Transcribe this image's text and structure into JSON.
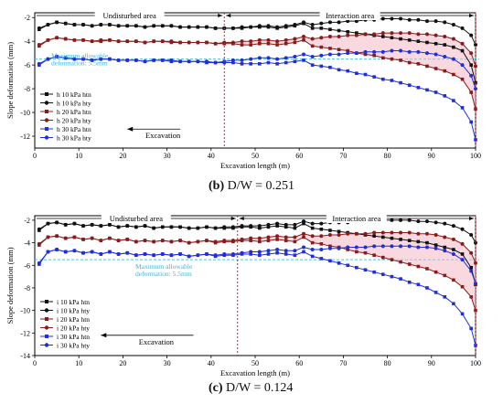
{
  "chart_data": [
    {
      "type": "line",
      "caption_letter": "(b)",
      "caption_text": "D/W = 0.251",
      "xlabel": "Excavation length (m)",
      "ylabel": "Slope deformation  (mm)",
      "xlim": [
        0,
        100
      ],
      "ylim": [
        -13,
        -1.6
      ],
      "xticks": [
        0,
        10,
        20,
        30,
        40,
        50,
        60,
        70,
        80,
        90,
        100
      ],
      "yticks": [
        -2,
        -4,
        -6,
        -8,
        -10,
        -12
      ],
      "region_labels": [
        "Undisturbed area",
        "Interaction area"
      ],
      "divider_x": 43,
      "end_x": 100,
      "allowable_label": "Maximum allowable deformation: 5.5mm",
      "allowable_y": -5.5,
      "excavation_label": "Excavation",
      "legend_position": "left",
      "x": [
        1,
        3,
        5,
        7,
        9,
        11,
        13,
        15,
        17,
        19,
        21,
        23,
        25,
        27,
        29,
        31,
        33,
        35,
        37,
        39,
        41,
        43,
        45,
        47,
        49,
        51,
        53,
        55,
        57,
        59,
        61,
        63,
        65,
        67,
        69,
        71,
        73,
        75,
        77,
        79,
        81,
        83,
        85,
        87,
        89,
        91,
        93,
        95,
        97,
        99,
        100
      ],
      "series": [
        {
          "name": "h 10 kPa htn",
          "color": "#111111",
          "marker": "square",
          "values": [
            -3.0,
            -2.6,
            -2.4,
            -2.5,
            -2.6,
            -2.6,
            -2.7,
            -2.6,
            -2.6,
            -2.7,
            -2.7,
            -2.7,
            -2.8,
            -2.7,
            -2.7,
            -2.7,
            -2.8,
            -2.8,
            -2.8,
            -2.8,
            -2.9,
            -2.9,
            -2.9,
            -2.9,
            -2.8,
            -2.8,
            -2.8,
            -2.9,
            -2.8,
            -2.7,
            -2.5,
            -2.9,
            -2.9,
            -3.0,
            -3.1,
            -3.2,
            -3.3,
            -3.4,
            -3.5,
            -3.6,
            -3.7,
            -3.8,
            -3.9,
            -4.0,
            -4.1,
            -4.2,
            -4.3,
            -4.5,
            -4.8,
            -6.0,
            -7.5
          ]
        },
        {
          "name": "h 10 kPa hty",
          "color": "#111111",
          "marker": "circle",
          "values": [
            -2.9,
            -2.6,
            -2.4,
            -2.5,
            -2.6,
            -2.6,
            -2.7,
            -2.6,
            -2.6,
            -2.7,
            -2.7,
            -2.7,
            -2.8,
            -2.7,
            -2.7,
            -2.7,
            -2.8,
            -2.8,
            -2.8,
            -2.8,
            -2.9,
            -2.9,
            -2.9,
            -2.8,
            -2.8,
            -2.7,
            -2.7,
            -2.8,
            -2.7,
            -2.6,
            -2.4,
            -2.6,
            -2.5,
            -2.4,
            -2.4,
            -2.3,
            -2.3,
            -2.2,
            -2.2,
            -2.1,
            -2.1,
            -2.1,
            -2.2,
            -2.2,
            -2.3,
            -2.3,
            -2.4,
            -2.6,
            -2.9,
            -3.5,
            -4.3
          ]
        },
        {
          "name": "h 20 kPa htn",
          "color": "#8b1a1a",
          "marker": "square",
          "values": [
            -4.4,
            -3.9,
            -3.7,
            -3.8,
            -3.9,
            -3.9,
            -4.0,
            -4.0,
            -3.9,
            -4.0,
            -4.0,
            -4.0,
            -4.1,
            -4.0,
            -4.0,
            -4.1,
            -4.1,
            -4.1,
            -4.1,
            -4.1,
            -4.2,
            -4.2,
            -4.2,
            -4.3,
            -4.3,
            -4.2,
            -4.2,
            -4.3,
            -4.2,
            -4.1,
            -3.9,
            -4.4,
            -4.5,
            -4.6,
            -4.7,
            -4.8,
            -5.0,
            -5.1,
            -5.2,
            -5.4,
            -5.5,
            -5.6,
            -5.8,
            -5.9,
            -6.1,
            -6.3,
            -6.5,
            -6.8,
            -7.2,
            -8.3,
            -9.7
          ]
        },
        {
          "name": "h 20 kPa hty",
          "color": "#8b1a1a",
          "marker": "circle",
          "values": [
            -4.3,
            -3.9,
            -3.7,
            -3.8,
            -3.9,
            -3.9,
            -4.0,
            -3.9,
            -3.9,
            -4.0,
            -4.0,
            -4.0,
            -4.1,
            -4.0,
            -4.0,
            -4.0,
            -4.1,
            -4.1,
            -4.1,
            -4.1,
            -4.2,
            -4.1,
            -4.1,
            -4.0,
            -4.0,
            -3.9,
            -3.9,
            -4.0,
            -3.9,
            -3.8,
            -3.6,
            -3.8,
            -3.7,
            -3.6,
            -3.6,
            -3.5,
            -3.5,
            -3.4,
            -3.4,
            -3.3,
            -3.3,
            -3.3,
            -3.3,
            -3.4,
            -3.4,
            -3.5,
            -3.6,
            -3.8,
            -4.2,
            -5.0,
            -6.1
          ]
        },
        {
          "name": "h 30 kPa htn",
          "color": "#1f2fd6",
          "marker": "square",
          "values": [
            -6.0,
            -5.5,
            -5.3,
            -5.4,
            -5.5,
            -5.5,
            -5.6,
            -5.5,
            -5.5,
            -5.6,
            -5.6,
            -5.6,
            -5.7,
            -5.6,
            -5.6,
            -5.7,
            -5.7,
            -5.7,
            -5.7,
            -5.8,
            -5.8,
            -5.8,
            -5.8,
            -5.9,
            -5.9,
            -5.9,
            -5.8,
            -5.9,
            -5.8,
            -5.7,
            -5.6,
            -6.0,
            -6.1,
            -6.2,
            -6.4,
            -6.5,
            -6.7,
            -6.8,
            -7.0,
            -7.2,
            -7.3,
            -7.5,
            -7.7,
            -7.9,
            -8.1,
            -8.3,
            -8.6,
            -9.0,
            -9.6,
            -10.8,
            -12.3
          ]
        },
        {
          "name": "h 30 kPa hty",
          "color": "#1f2fd6",
          "marker": "circle",
          "values": [
            -5.9,
            -5.5,
            -5.3,
            -5.4,
            -5.5,
            -5.5,
            -5.6,
            -5.5,
            -5.5,
            -5.6,
            -5.6,
            -5.6,
            -5.7,
            -5.6,
            -5.6,
            -5.6,
            -5.7,
            -5.7,
            -5.7,
            -5.7,
            -5.8,
            -5.7,
            -5.6,
            -5.6,
            -5.5,
            -5.4,
            -5.4,
            -5.5,
            -5.4,
            -5.3,
            -5.1,
            -5.3,
            -5.2,
            -5.1,
            -5.1,
            -5.0,
            -5.0,
            -4.9,
            -4.9,
            -4.9,
            -4.8,
            -4.8,
            -4.9,
            -4.9,
            -5.0,
            -5.1,
            -5.3,
            -5.5,
            -6.0,
            -6.9,
            -8.0
          ]
        }
      ]
    },
    {
      "type": "line",
      "caption_letter": "(c)",
      "caption_text": "D/W = 0.124",
      "xlabel": "Excavation length (m)",
      "ylabel": "Slope deformation  (mm)",
      "xlim": [
        0,
        100
      ],
      "ylim": [
        -14,
        -1.6
      ],
      "xticks": [
        0,
        10,
        20,
        30,
        40,
        50,
        60,
        70,
        80,
        90,
        100
      ],
      "yticks": [
        -2,
        -4,
        -6,
        -8,
        -10,
        -12,
        -14
      ],
      "region_labels": [
        "Undisturbed area",
        "Interaction area"
      ],
      "divider_x": 46,
      "end_x": 100,
      "allowable_label": "Maximum allowable deformation: 5.5mm",
      "allowable_y": -5.5,
      "excavation_label": "Excavation",
      "legend_position": "bottom-left",
      "x": [
        1,
        3,
        5,
        7,
        9,
        11,
        13,
        15,
        17,
        19,
        21,
        23,
        25,
        27,
        29,
        31,
        33,
        35,
        37,
        39,
        41,
        43,
        45,
        47,
        49,
        51,
        53,
        55,
        57,
        59,
        61,
        63,
        65,
        67,
        69,
        71,
        73,
        75,
        77,
        79,
        81,
        83,
        85,
        87,
        89,
        91,
        93,
        95,
        97,
        99,
        100
      ],
      "series": [
        {
          "name": "i 10 kPa htn",
          "color": "#111111",
          "marker": "square",
          "values": [
            -2.9,
            -2.3,
            -2.2,
            -2.4,
            -2.3,
            -2.5,
            -2.4,
            -2.5,
            -2.4,
            -2.6,
            -2.5,
            -2.6,
            -2.5,
            -2.7,
            -2.6,
            -2.6,
            -2.6,
            -2.7,
            -2.7,
            -2.6,
            -2.7,
            -2.7,
            -2.7,
            -2.6,
            -2.6,
            -2.7,
            -2.6,
            -2.5,
            -2.6,
            -2.7,
            -2.3,
            -2.7,
            -2.8,
            -2.9,
            -3.0,
            -3.1,
            -3.2,
            -3.3,
            -3.4,
            -3.5,
            -3.6,
            -3.7,
            -3.8,
            -3.9,
            -4.0,
            -4.2,
            -4.4,
            -4.6,
            -5.0,
            -6.2,
            -7.7
          ]
        },
        {
          "name": "i 10 kPa hty",
          "color": "#111111",
          "marker": "circle",
          "values": [
            -2.8,
            -2.3,
            -2.2,
            -2.4,
            -2.3,
            -2.5,
            -2.4,
            -2.5,
            -2.4,
            -2.6,
            -2.5,
            -2.6,
            -2.5,
            -2.7,
            -2.6,
            -2.6,
            -2.6,
            -2.7,
            -2.7,
            -2.6,
            -2.7,
            -2.6,
            -2.6,
            -2.5,
            -2.5,
            -2.5,
            -2.4,
            -2.3,
            -2.4,
            -2.4,
            -2.1,
            -2.3,
            -2.3,
            -2.2,
            -2.2,
            -2.2,
            -2.1,
            -2.1,
            -2.1,
            -2.0,
            -2.0,
            -2.0,
            -2.0,
            -2.1,
            -2.1,
            -2.2,
            -2.3,
            -2.5,
            -2.8,
            -3.3,
            -4.0
          ]
        },
        {
          "name": "i 20 kPa htn",
          "color": "#8b1a1a",
          "marker": "square",
          "values": [
            -4.2,
            -3.5,
            -3.4,
            -3.6,
            -3.5,
            -3.7,
            -3.6,
            -3.8,
            -3.6,
            -3.8,
            -3.7,
            -3.9,
            -3.8,
            -3.9,
            -3.8,
            -3.9,
            -3.8,
            -4.0,
            -3.9,
            -3.8,
            -4.0,
            -3.9,
            -3.9,
            -3.8,
            -3.8,
            -3.9,
            -3.8,
            -3.7,
            -3.8,
            -3.9,
            -3.5,
            -4.0,
            -4.1,
            -4.3,
            -4.4,
            -4.6,
            -4.8,
            -4.9,
            -5.1,
            -5.3,
            -5.5,
            -5.7,
            -5.9,
            -6.1,
            -6.3,
            -6.6,
            -6.9,
            -7.3,
            -7.9,
            -8.8,
            -10.0
          ]
        },
        {
          "name": "i 20 kPa hty",
          "color": "#8b1a1a",
          "marker": "circle",
          "values": [
            -4.1,
            -3.5,
            -3.4,
            -3.6,
            -3.5,
            -3.7,
            -3.6,
            -3.8,
            -3.6,
            -3.8,
            -3.7,
            -3.9,
            -3.8,
            -3.9,
            -3.8,
            -3.9,
            -3.8,
            -4.0,
            -3.9,
            -3.8,
            -3.9,
            -3.8,
            -3.8,
            -3.7,
            -3.6,
            -3.6,
            -3.5,
            -3.4,
            -3.5,
            -3.5,
            -3.2,
            -3.4,
            -3.4,
            -3.3,
            -3.3,
            -3.2,
            -3.2,
            -3.2,
            -3.1,
            -3.1,
            -3.1,
            -3.1,
            -3.1,
            -3.2,
            -3.2,
            -3.3,
            -3.5,
            -3.7,
            -4.1,
            -4.9,
            -5.8
          ]
        },
        {
          "name": "i 30 kPa htn",
          "color": "#1f2fd6",
          "marker": "square",
          "values": [
            -5.9,
            -4.8,
            -4.6,
            -4.8,
            -4.7,
            -4.9,
            -4.8,
            -5.0,
            -4.8,
            -5.0,
            -4.9,
            -5.1,
            -5.0,
            -5.1,
            -5.0,
            -5.1,
            -5.0,
            -5.2,
            -5.1,
            -5.0,
            -5.2,
            -5.1,
            -5.1,
            -5.0,
            -5.0,
            -5.1,
            -5.0,
            -4.9,
            -5.0,
            -5.1,
            -4.8,
            -5.2,
            -5.4,
            -5.6,
            -5.8,
            -6.0,
            -6.2,
            -6.4,
            -6.6,
            -6.8,
            -7.0,
            -7.2,
            -7.5,
            -7.7,
            -8.0,
            -8.4,
            -8.8,
            -9.4,
            -10.3,
            -11.6,
            -13.1
          ]
        },
        {
          "name": "i 30 kPa hty",
          "color": "#1f2fd6",
          "marker": "circle",
          "values": [
            -5.8,
            -4.8,
            -4.6,
            -4.8,
            -4.7,
            -4.9,
            -4.8,
            -5.0,
            -4.8,
            -5.0,
            -4.9,
            -5.1,
            -5.0,
            -5.1,
            -5.0,
            -5.1,
            -5.0,
            -5.2,
            -5.1,
            -5.0,
            -5.1,
            -5.0,
            -5.0,
            -4.9,
            -4.8,
            -4.8,
            -4.7,
            -4.6,
            -4.7,
            -4.7,
            -4.4,
            -4.6,
            -4.6,
            -4.5,
            -4.5,
            -4.4,
            -4.4,
            -4.4,
            -4.3,
            -4.3,
            -4.3,
            -4.3,
            -4.3,
            -4.4,
            -4.4,
            -4.5,
            -4.7,
            -5.0,
            -5.5,
            -6.5,
            -7.6
          ]
        }
      ]
    }
  ]
}
